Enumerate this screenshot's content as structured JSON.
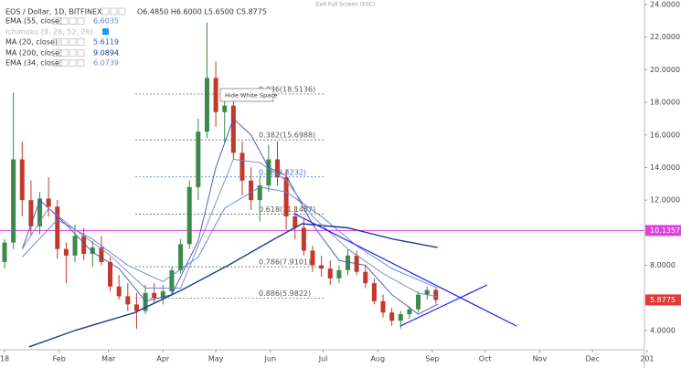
{
  "header": {
    "exit_full_screen": "Exit Full Screen (ESC)",
    "tooltip": "Hide White Space"
  },
  "chart_data": {
    "type": "candlestick",
    "title": "EOS / Dollar, 1D, BITFINEX",
    "ohlc_label": "O6.4850 H6.6000 L5.6500 C5.8775",
    "up_color": "#3a8a4a",
    "down_color": "#c0392b",
    "xlim": [
      -2.6,
      363.5
    ],
    "ylim": [
      2.82,
      24.28
    ],
    "xticks": [
      {
        "value": 0,
        "label": "18"
      },
      {
        "value": 31,
        "label": "Feb"
      },
      {
        "value": 59,
        "label": "Mar"
      },
      {
        "value": 90,
        "label": "Apr"
      },
      {
        "value": 120,
        "label": "May"
      },
      {
        "value": 151,
        "label": "Jun"
      },
      {
        "value": 181,
        "label": "Jul"
      },
      {
        "value": 212,
        "label": "Aug"
      },
      {
        "value": 243,
        "label": "Sep"
      },
      {
        "value": 273,
        "label": "Oct"
      },
      {
        "value": 304,
        "label": "Nov"
      },
      {
        "value": 334,
        "label": "Dec"
      },
      {
        "value": 365,
        "label": "201"
      }
    ],
    "yticks": [
      {
        "value": 4,
        "label": "4.0000"
      },
      {
        "value": 6,
        "label": "6.0000"
      },
      {
        "value": 8,
        "label": "8.0000"
      },
      {
        "value": 10,
        "label": "10.0000"
      },
      {
        "value": 12,
        "label": "12.0000"
      },
      {
        "value": 14,
        "label": "14.0000"
      },
      {
        "value": 16,
        "label": "16.0000"
      },
      {
        "value": 18,
        "label": "18.0000"
      },
      {
        "value": 20,
        "label": "20.0000"
      },
      {
        "value": 22,
        "label": "22.0000"
      },
      {
        "value": 24,
        "label": "24.0000"
      }
    ],
    "candles": {
      "x": [
        0,
        5,
        10,
        15,
        20,
        25,
        30,
        35,
        40,
        45,
        50,
        55,
        60,
        65,
        70,
        75,
        80,
        85,
        90,
        95,
        100,
        105,
        110,
        115,
        120,
        125,
        130,
        135,
        140,
        145,
        150,
        155,
        160,
        165,
        170,
        175,
        180,
        185,
        190,
        195,
        200,
        205,
        210,
        215,
        220,
        225,
        230,
        235,
        240,
        245
      ],
      "open": [
        8.2,
        9.4,
        14.5,
        12.0,
        10.4,
        12.1,
        11.6,
        9.0,
        8.6,
        9.8,
        8.7,
        9.1,
        8.2,
        6.7,
        6.1,
        5.6,
        5.2,
        6.3,
        6.0,
        6.4,
        7.7,
        9.3,
        12.8,
        16.2,
        19.5,
        17.4,
        17.8,
        14.9,
        13.2,
        12.0,
        12.9,
        14.5,
        13.4,
        11.0,
        10.3,
        8.9,
        8.0,
        7.8,
        7.2,
        7.7,
        8.6,
        7.6,
        6.9,
        5.8,
        5.1,
        4.6,
        5.0,
        5.3,
        6.2,
        6.485
      ],
      "high": [
        9.6,
        18.6,
        15.6,
        13.2,
        12.5,
        13.4,
        12.0,
        9.4,
        10.5,
        10.3,
        9.5,
        9.8,
        8.5,
        7.4,
        6.9,
        6.3,
        6.8,
        6.9,
        6.8,
        7.9,
        9.6,
        13.2,
        17.0,
        22.9,
        20.5,
        18.8,
        18.6,
        15.6,
        14.0,
        13.5,
        15.4,
        15.6,
        13.9,
        11.6,
        10.9,
        9.2,
        8.6,
        8.3,
        8.0,
        9.0,
        8.9,
        8.0,
        7.2,
        6.2,
        5.4,
        5.2,
        5.5,
        6.4,
        6.7,
        6.6
      ],
      "low": [
        7.8,
        9.0,
        11.0,
        9.8,
        9.9,
        11.0,
        8.4,
        6.9,
        8.2,
        8.3,
        7.9,
        8.0,
        6.4,
        5.9,
        5.2,
        4.1,
        5.0,
        5.7,
        5.6,
        6.2,
        7.5,
        9.0,
        12.0,
        15.8,
        16.5,
        15.5,
        14.5,
        12.3,
        11.4,
        10.7,
        12.5,
        12.9,
        10.2,
        9.6,
        8.6,
        7.6,
        7.3,
        6.8,
        6.9,
        7.4,
        7.4,
        6.6,
        5.6,
        4.8,
        4.3,
        4.1,
        4.7,
        5.1,
        5.9,
        5.65
      ],
      "close": [
        9.4,
        14.5,
        12.0,
        10.4,
        12.1,
        11.6,
        9.0,
        8.6,
        9.8,
        8.7,
        9.1,
        8.2,
        6.7,
        6.1,
        5.6,
        5.2,
        6.3,
        6.0,
        6.4,
        7.7,
        9.3,
        12.8,
        16.2,
        19.5,
        17.4,
        17.8,
        14.9,
        13.2,
        12.0,
        12.9,
        14.5,
        13.4,
        11.0,
        10.3,
        8.9,
        8.0,
        7.8,
        7.2,
        7.7,
        8.6,
        7.6,
        6.9,
        5.8,
        5.1,
        4.6,
        5.0,
        5.3,
        6.2,
        6.485,
        5.8775
      ]
    },
    "series": [
      {
        "name": "EMA (55, close)",
        "value_label": "6.6035",
        "color": "#5b7fd6",
        "x": [
          10,
          30,
          50,
          70,
          90,
          110,
          125,
          145,
          160,
          180,
          200,
          220,
          246
        ],
        "values": [
          8.5,
          10.8,
          9.6,
          8.0,
          7.0,
          8.5,
          11.5,
          12.8,
          12.5,
          11.0,
          9.2,
          7.8,
          6.6035
        ]
      },
      {
        "name": "MA (20, close)",
        "value_label": "5.6119",
        "color": "#3f51b5",
        "x": [
          10,
          20,
          35,
          50,
          65,
          80,
          95,
          110,
          120,
          130,
          140,
          150,
          160,
          175,
          190,
          205,
          220,
          235,
          246
        ],
        "values": [
          9.0,
          12.0,
          10.5,
          8.8,
          7.8,
          5.8,
          6.2,
          9.5,
          14.0,
          17.0,
          16.0,
          14.0,
          13.5,
          10.5,
          8.3,
          8.0,
          6.2,
          5.0,
          5.6119
        ]
      },
      {
        "name": "MA (200, close)",
        "value_label": "9.0894",
        "color": "#1f3a93",
        "x": [
          14,
          40,
          74,
          101,
          127,
          153,
          169,
          195,
          221,
          246
        ],
        "values": [
          3.0,
          4.0,
          5.1,
          6.5,
          8.0,
          9.6,
          10.55,
          10.3,
          9.6,
          9.0894
        ]
      },
      {
        "name": "EMA (34, close)",
        "value_label": "6.0739",
        "color": "#7986cb",
        "x": [
          10,
          25,
          40,
          60,
          80,
          100,
          115,
          130,
          145,
          160,
          175,
          195,
          215,
          235,
          246
        ],
        "values": [
          9.0,
          11.5,
          10.2,
          8.6,
          6.6,
          6.6,
          10.5,
          14.5,
          14.3,
          13.2,
          11.0,
          9.0,
          7.5,
          6.3,
          6.0739
        ]
      }
    ],
    "hidden_indicator": "Ichimoku (9, 26, 52, 26)",
    "fib_levels": [
      {
        "value": 18.5136,
        "label": "0.236(18.5136)"
      },
      {
        "value": 15.6988,
        "label": "0.382(15.6988)"
      },
      {
        "value": 13.4232,
        "label": "0.5(13.4232)",
        "color": "#3f6fd8"
      },
      {
        "value": 11.1487,
        "label": "0.618(11.1487)"
      },
      {
        "value": 7.9101,
        "label": "0.786(7.9101)"
      },
      {
        "value": 5.9822,
        "label": "0.886(5.9822)"
      }
    ],
    "price_tags": [
      {
        "value": 10.1357,
        "label": "10.1357",
        "color": "#e040e0",
        "line": true
      },
      {
        "value": 5.8775,
        "label": "5.8775",
        "color": "#e53935",
        "line": false
      }
    ]
  }
}
